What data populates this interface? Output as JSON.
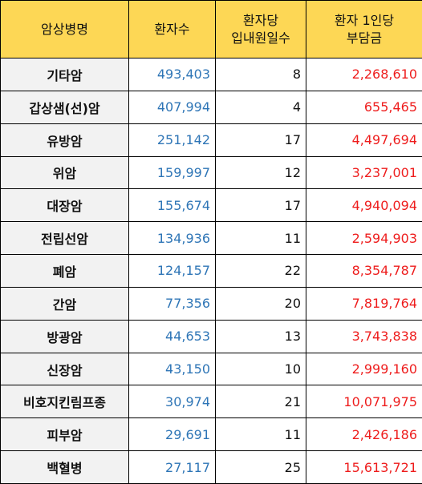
{
  "table": {
    "headers": {
      "name": "암상병명",
      "patients": "환자수",
      "days_line1": "환자당",
      "days_line2": "입내원일수",
      "cost_line1": "환자 1인당",
      "cost_line2": "부담금"
    },
    "rows": [
      {
        "name": "기타암",
        "patients": "493,403",
        "days": "8",
        "cost": "2,268,610"
      },
      {
        "name": "갑상샘(선)암",
        "patients": "407,994",
        "days": "4",
        "cost": "655,465"
      },
      {
        "name": "유방암",
        "patients": "251,142",
        "days": "17",
        "cost": "4,497,694"
      },
      {
        "name": "위암",
        "patients": "159,997",
        "days": "12",
        "cost": "3,237,001"
      },
      {
        "name": "대장암",
        "patients": "155,674",
        "days": "17",
        "cost": "4,940,094"
      },
      {
        "name": "전립선암",
        "patients": "134,936",
        "days": "11",
        "cost": "2,594,903"
      },
      {
        "name": "폐암",
        "patients": "124,157",
        "days": "22",
        "cost": "8,354,787"
      },
      {
        "name": "간암",
        "patients": "77,356",
        "days": "20",
        "cost": "7,819,764"
      },
      {
        "name": "방광암",
        "patients": "44,653",
        "days": "13",
        "cost": "3,743,838"
      },
      {
        "name": "신장암",
        "patients": "43,150",
        "days": "10",
        "cost": "2,999,160"
      },
      {
        "name": "비호지킨림프종",
        "patients": "30,974",
        "days": "21",
        "cost": "10,071,975"
      },
      {
        "name": "피부암",
        "patients": "29,691",
        "days": "11",
        "cost": "2,426,186"
      },
      {
        "name": "백혈병",
        "patients": "27,117",
        "days": "25",
        "cost": "15,613,721"
      }
    ]
  },
  "colors": {
    "header_bg": "#fdd755",
    "name_bg": "#f2f2f2",
    "patients_text": "#2e75b6",
    "cost_text": "#ee1c1c",
    "border": "#000000"
  }
}
